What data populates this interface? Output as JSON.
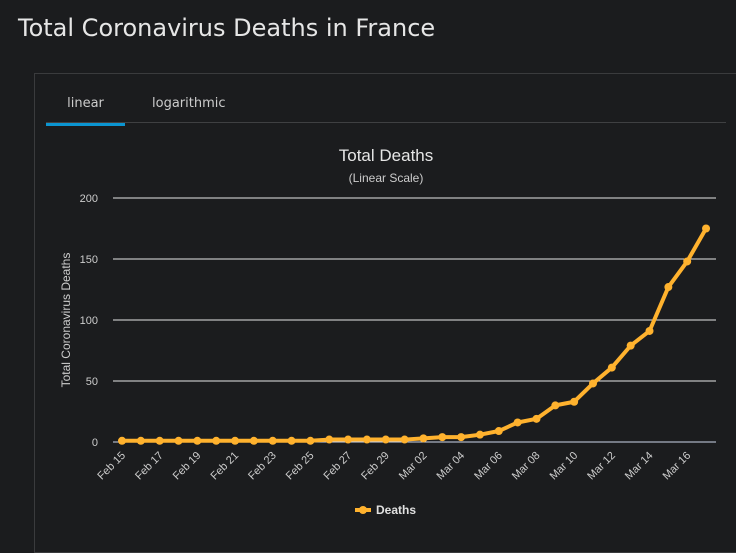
{
  "page_title": "Total Coronavirus Deaths in France",
  "tabs": [
    {
      "label": "linear",
      "active": true
    },
    {
      "label": "logarithmic",
      "active": false
    }
  ],
  "chart_data": {
    "type": "line",
    "title": "Total Deaths",
    "subtitle": "(Linear Scale)",
    "ylabel": "Total Coronavirus Deaths",
    "xlabel": "",
    "ylim": [
      0,
      200
    ],
    "yticks": [
      0,
      50,
      100,
      150,
      200
    ],
    "grid": true,
    "legend": "bottom-center",
    "x": [
      "Feb 15",
      "Feb 16",
      "Feb 17",
      "Feb 18",
      "Feb 19",
      "Feb 20",
      "Feb 21",
      "Feb 22",
      "Feb 23",
      "Feb 24",
      "Feb 25",
      "Feb 26",
      "Feb 27",
      "Feb 28",
      "Feb 29",
      "Mar 01",
      "Mar 02",
      "Mar 03",
      "Mar 04",
      "Mar 05",
      "Mar 06",
      "Mar 07",
      "Mar 08",
      "Mar 09",
      "Mar 10",
      "Mar 11",
      "Mar 12",
      "Mar 13",
      "Mar 14",
      "Mar 15",
      "Mar 16",
      "Mar 17"
    ],
    "xticks": [
      "Feb 15",
      "Feb 17",
      "Feb 19",
      "Feb 21",
      "Feb 23",
      "Feb 25",
      "Feb 27",
      "Feb 29",
      "Mar 02",
      "Mar 04",
      "Mar 06",
      "Mar 08",
      "Mar 10",
      "Mar 12",
      "Mar 14",
      "Mar 16"
    ],
    "series": [
      {
        "name": "Deaths",
        "color": "#ffb22e",
        "values": [
          1,
          1,
          1,
          1,
          1,
          1,
          1,
          1,
          1,
          1,
          1,
          2,
          2,
          2,
          2,
          2,
          3,
          4,
          4,
          6,
          9,
          16,
          19,
          30,
          33,
          48,
          61,
          79,
          91,
          127,
          148,
          175
        ]
      }
    ]
  }
}
